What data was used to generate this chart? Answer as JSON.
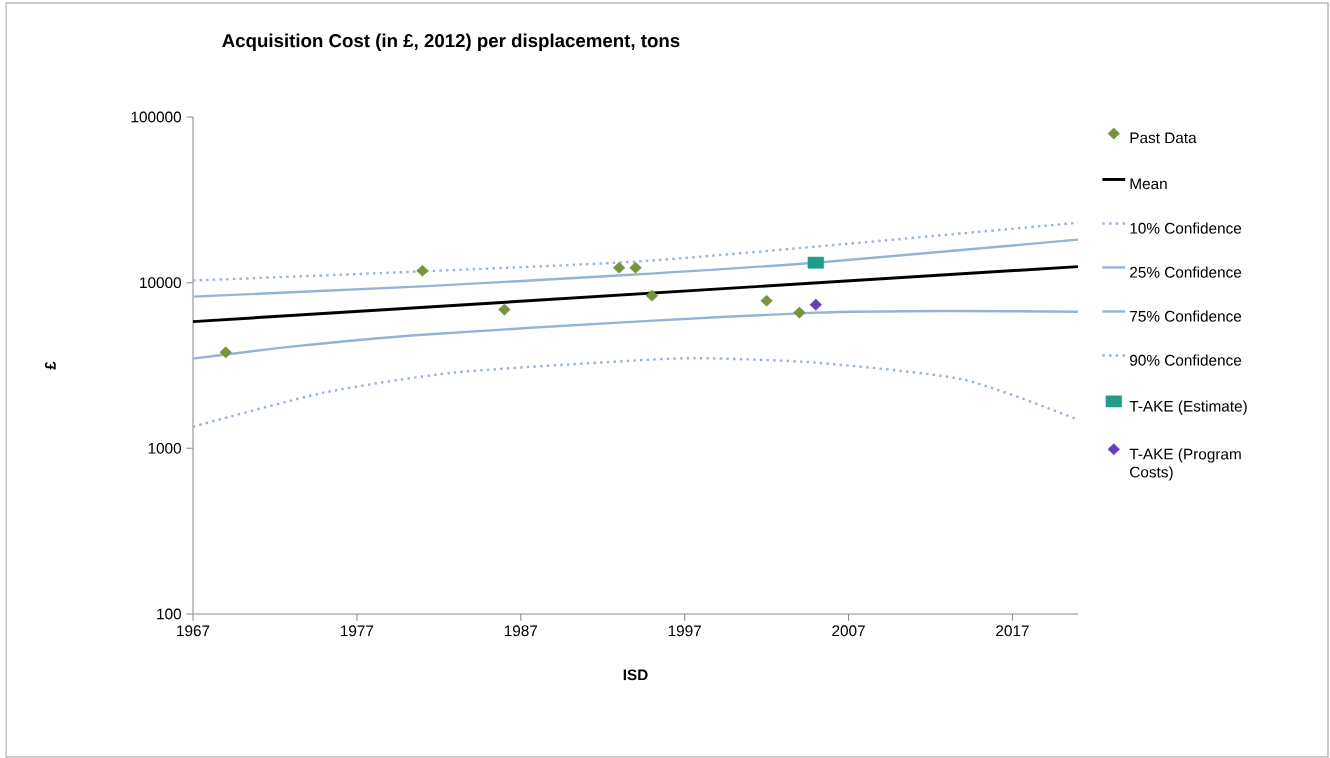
{
  "chart_data": {
    "type": "line",
    "title": "Acquisition Cost (in £, 2012) per displacement, tons",
    "xlabel": "ISD",
    "ylabel": "£",
    "log": "y",
    "legend": "right",
    "xlim": [
      1967,
      2021
    ],
    "xticks": [
      1967,
      1977,
      1987,
      1997,
      2007,
      2017
    ],
    "ylim": [
      100,
      100000
    ],
    "yticks": [
      100,
      1000,
      10000,
      100000
    ],
    "series": [
      {
        "name": "Past Data",
        "type": "scatter",
        "marker": "diamond",
        "color": "#77933c",
        "x": [
          1969,
          1981,
          1986,
          1993,
          1994,
          1995,
          2002,
          2004
        ],
        "values": [
          3800,
          11800,
          6880,
          12300,
          12300,
          8350,
          7780,
          6600
        ]
      },
      {
        "name": "Mean",
        "line_style": "solid",
        "color": "#000000",
        "x": [
          1967,
          2021
        ],
        "values": [
          5820,
          12500
        ]
      },
      {
        "name": "10% Confidence",
        "line_style": "dotted",
        "color": "#95b3d7",
        "x": [
          1967,
          1981,
          1994,
          2005,
          2021
        ],
        "values": [
          10300,
          11700,
          13400,
          16500,
          23000
        ]
      },
      {
        "name": "25% Confidence",
        "line_style": "solid",
        "color": "#95b3d7",
        "x": [
          1967,
          1981,
          1994,
          2005,
          2021
        ],
        "values": [
          8240,
          9500,
          11200,
          13200,
          18200
        ]
      },
      {
        "name": "75% Confidence",
        "line_style": "solid",
        "color": "#95b3d7",
        "x": [
          1967,
          1973,
          1981,
          1994,
          2005,
          2013,
          2021
        ],
        "values": [
          3480,
          4110,
          4850,
          5820,
          6590,
          6750,
          6680
        ]
      },
      {
        "name": "90% Confidence",
        "line_style": "dotted",
        "color": "#95b3d7",
        "x": [
          1967,
          1975,
          1983,
          1994,
          1998,
          2005,
          2014,
          2021
        ],
        "values": [
          1350,
          2170,
          2870,
          3390,
          3500,
          3290,
          2600,
          1490
        ]
      },
      {
        "name": "T-AKE (Estimate)",
        "type": "scatter",
        "marker": "square",
        "color": "#1f9b8a",
        "x": [
          2005
        ],
        "values": [
          13200
        ]
      },
      {
        "name": "T-AKE (Program Costs)",
        "type": "scatter",
        "marker": "diamond",
        "color": "#6a3db8",
        "x": [
          2005
        ],
        "values": [
          7360
        ]
      }
    ]
  }
}
